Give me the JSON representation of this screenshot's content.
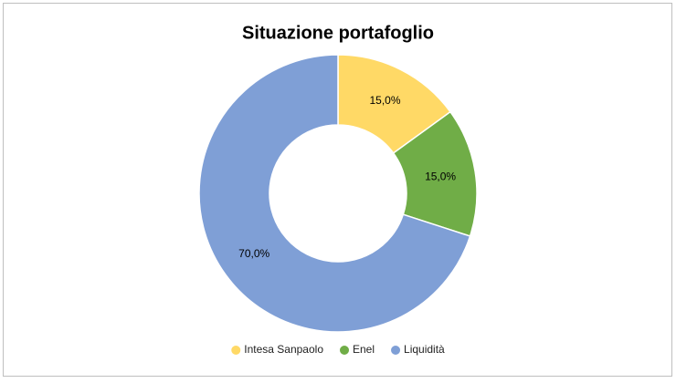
{
  "chart_data": {
    "type": "donut",
    "title": "Situazione portafoglio",
    "categories": [
      "Intesa Sanpaolo",
      "Enel",
      "Liquidità"
    ],
    "values": [
      15,
      15,
      70
    ],
    "value_labels": [
      "15,0%",
      "15,0%",
      "70,0%"
    ],
    "colors": [
      "#ffd966",
      "#70ad47",
      "#7f9fd6"
    ],
    "legend": "bottom"
  }
}
